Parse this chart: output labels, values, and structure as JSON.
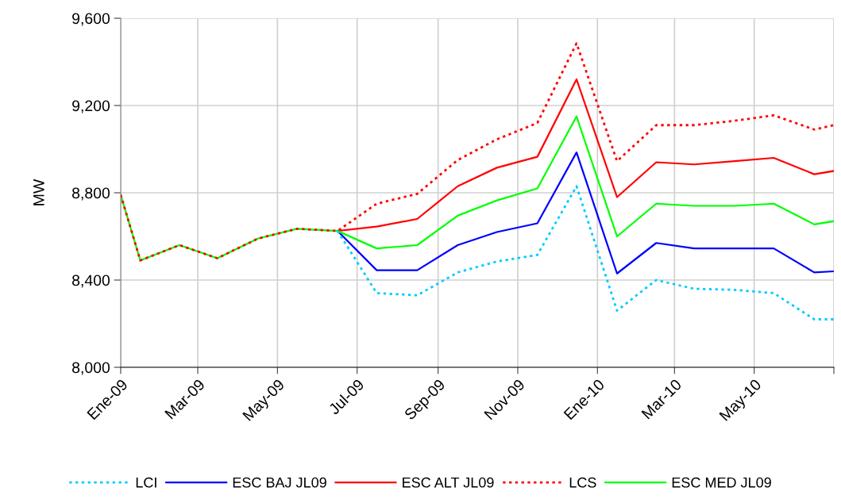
{
  "chart_data": {
    "type": "line",
    "ylabel": "MW",
    "x": [
      "2009-01-01",
      "2009-01-16",
      "2009-02-15",
      "2009-03-16",
      "2009-04-16",
      "2009-05-16",
      "2009-06-16",
      "2009-07-16",
      "2009-08-16",
      "2009-09-16",
      "2009-10-16",
      "2009-11-16",
      "2009-12-16",
      "2010-01-16",
      "2010-02-15",
      "2010-03-16",
      "2010-04-16",
      "2010-05-16",
      "2010-06-16",
      "2010-07-01"
    ],
    "series": [
      {
        "name": "LCI",
        "color": "#00ccff",
        "line_style": "dotted",
        "values": [
          null,
          null,
          null,
          null,
          null,
          null,
          8625,
          8340,
          8330,
          8435,
          8485,
          8515,
          8830,
          8260,
          8400,
          8360,
          8355,
          8340,
          8220,
          8220
        ]
      },
      {
        "name": "ESC BAJ JL09",
        "color": "#0000ff",
        "line_style": "solid",
        "values": [
          null,
          null,
          null,
          null,
          null,
          null,
          8625,
          8445,
          8445,
          8560,
          8620,
          8660,
          8985,
          8430,
          8570,
          8545,
          8545,
          8545,
          8435,
          8440
        ]
      },
      {
        "name": "ESC ALT JL09",
        "color": "#ff0000",
        "line_style": "solid",
        "values": [
          null,
          null,
          null,
          null,
          null,
          null,
          8625,
          8645,
          8680,
          8830,
          8915,
          8965,
          9320,
          8780,
          8940,
          8930,
          8945,
          8960,
          8885,
          8900
        ]
      },
      {
        "name": "LCS",
        "color": "#ff0000",
        "line_style": "dotted",
        "values": [
          8790,
          8490,
          8560,
          8500,
          8590,
          8635,
          8625,
          8750,
          8795,
          8950,
          9045,
          9120,
          9485,
          8945,
          9110,
          9110,
          9130,
          9155,
          9090,
          9110
        ]
      },
      {
        "name": "ESC MED JL09",
        "color": "#00ff00",
        "line_style": "solid",
        "values": [
          8790,
          8490,
          8560,
          8500,
          8590,
          8635,
          8625,
          8545,
          8560,
          8695,
          8765,
          8820,
          9150,
          8600,
          8750,
          8740,
          8740,
          8750,
          8655,
          8670
        ]
      }
    ],
    "xlim": [
      "2009-01-01",
      "2010-07-01"
    ],
    "xticks": [
      {
        "value": "2009-01-01",
        "label": "Ene-09"
      },
      {
        "value": "2009-03-01",
        "label": "Mar-09"
      },
      {
        "value": "2009-05-01",
        "label": "May-09"
      },
      {
        "value": "2009-07-01",
        "label": "Jul-09"
      },
      {
        "value": "2009-09-01",
        "label": "Sep-09"
      },
      {
        "value": "2009-11-01",
        "label": "Nov-09"
      },
      {
        "value": "2010-01-01",
        "label": "Ene-10"
      },
      {
        "value": "2010-03-01",
        "label": "Mar-10"
      },
      {
        "value": "2010-05-01",
        "label": "May-10"
      },
      {
        "value": "2010-07-01",
        "label": null
      }
    ],
    "ylim": [
      8000,
      9600
    ],
    "yticks": [
      {
        "value": 8000,
        "label": "8,000"
      },
      {
        "value": 8400,
        "label": "8,400"
      },
      {
        "value": 8800,
        "label": "8,800"
      },
      {
        "value": 9200,
        "label": "9,200"
      },
      {
        "value": 9600,
        "label": "9,600"
      }
    ],
    "grid": true,
    "legend": "bottom",
    "marker": "none"
  }
}
